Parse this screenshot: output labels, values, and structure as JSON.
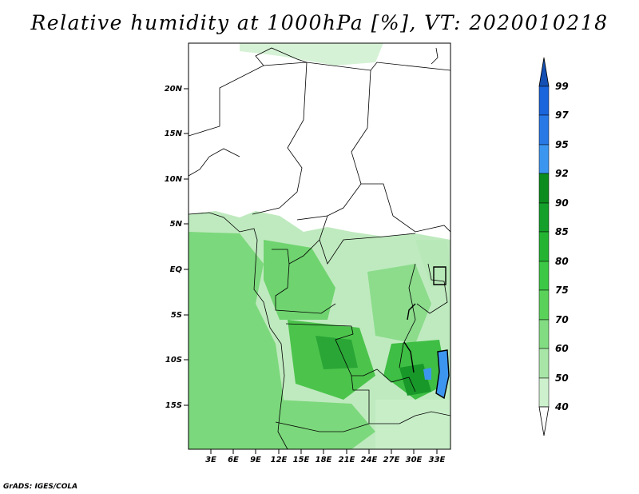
{
  "title": "Relative humidity at 1000hPa [%], VT: 2020010218",
  "credit": "GrADS: IGES/COLA",
  "map": {
    "lat_ticks": [
      "20N",
      "15N",
      "10N",
      "5N",
      "EQ",
      "5S",
      "10S",
      "15S"
    ],
    "lon_ticks": [
      "3E",
      "6E",
      "9E",
      "12E",
      "15E",
      "18E",
      "21E",
      "24E",
      "27E",
      "30E",
      "33E"
    ],
    "region": "Central / West-Central Africa",
    "field": "relative humidity",
    "units": "%"
  },
  "colorbar": {
    "levels": [
      "99",
      "97",
      "95",
      "92",
      "90",
      "85",
      "80",
      "75",
      "70",
      "60",
      "50",
      "40"
    ],
    "colors": [
      "#1a64dc",
      "#2878e6",
      "#3c96f0",
      "#0c8c1e",
      "#14a02a",
      "#24b432",
      "#3cc846",
      "#5ad25a",
      "#82dc82",
      "#a8e6a8",
      "#cdf0cd",
      "#e8f8e8"
    ],
    "top_cap_color": "#1450b4",
    "bottom_cap_color": "#ffffff"
  }
}
